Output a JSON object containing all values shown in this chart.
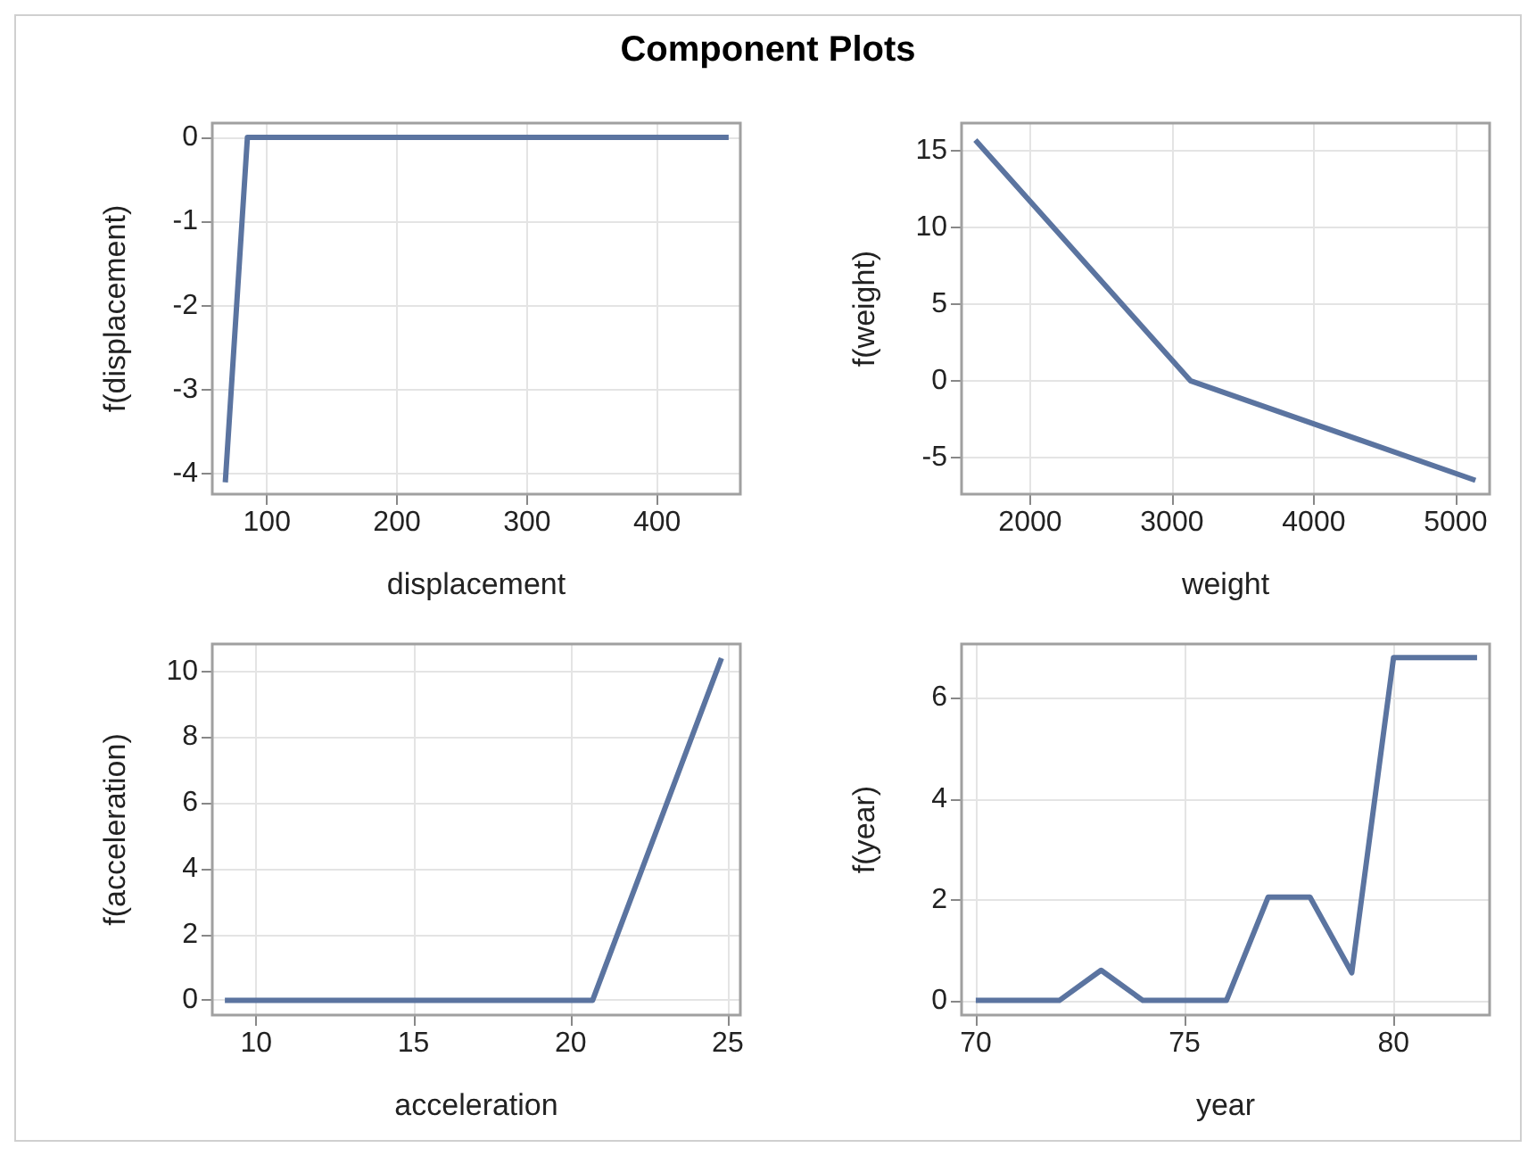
{
  "chart_data": [
    {
      "type": "line",
      "title": "Component Plots",
      "xlabel": "displacement",
      "ylabel": "f(displacement)",
      "x": [
        68,
        85,
        455
      ],
      "series": [
        {
          "color": "#5b74a0",
          "values": [
            -4.1,
            0,
            0
          ]
        }
      ],
      "xlim": [
        58,
        464
      ],
      "xticks": [
        100,
        200,
        300,
        400
      ],
      "ylim": [
        -4.24,
        0.17
      ],
      "yticks": [
        -4,
        -3,
        -2,
        -1,
        0
      ],
      "grid": true,
      "marker": "none",
      "line_style": "solid"
    },
    {
      "type": "line",
      "xlabel": "weight",
      "ylabel": "f(weight)",
      "x": [
        1613,
        3130,
        5140
      ],
      "series": [
        {
          "color": "#5b74a0",
          "values": [
            15.7,
            0,
            -6.5
          ]
        }
      ],
      "xlim": [
        1516,
        5240
      ],
      "xticks": [
        2000,
        3000,
        4000,
        5000
      ],
      "ylim": [
        -7.4,
        16.8
      ],
      "yticks": [
        -5,
        0,
        5,
        10,
        15
      ],
      "grid": true,
      "marker": "none",
      "line_style": "solid"
    },
    {
      "type": "line",
      "xlabel": "acceleration",
      "ylabel": "f(acceleration)",
      "x": [
        9,
        20.7,
        24.8
      ],
      "series": [
        {
          "color": "#5b74a0",
          "values": [
            0,
            0,
            10.4
          ]
        }
      ],
      "xlim": [
        8.6,
        25.4
      ],
      "xticks": [
        10,
        15,
        20,
        25
      ],
      "ylim": [
        -0.45,
        10.83
      ],
      "yticks": [
        0,
        2,
        4,
        6,
        8,
        10
      ],
      "grid": true,
      "marker": "none",
      "line_style": "solid"
    },
    {
      "type": "line",
      "xlabel": "year",
      "ylabel": "f(year)",
      "x": [
        70,
        71,
        72,
        73,
        74,
        75,
        76,
        77,
        78,
        79,
        80,
        81,
        82
      ],
      "series": [
        {
          "color": "#5b74a0",
          "values": [
            0,
            0,
            0,
            0.6,
            0,
            0,
            0,
            2.05,
            2.05,
            0.55,
            6.8,
            6.8,
            6.8
          ]
        }
      ],
      "xlim": [
        69.66,
        82.3
      ],
      "xticks": [
        70,
        75,
        80
      ],
      "ylim": [
        -0.29,
        7.07
      ],
      "yticks": [
        0,
        2,
        4,
        6
      ],
      "grid": true,
      "marker": "none",
      "line_style": "solid"
    }
  ]
}
